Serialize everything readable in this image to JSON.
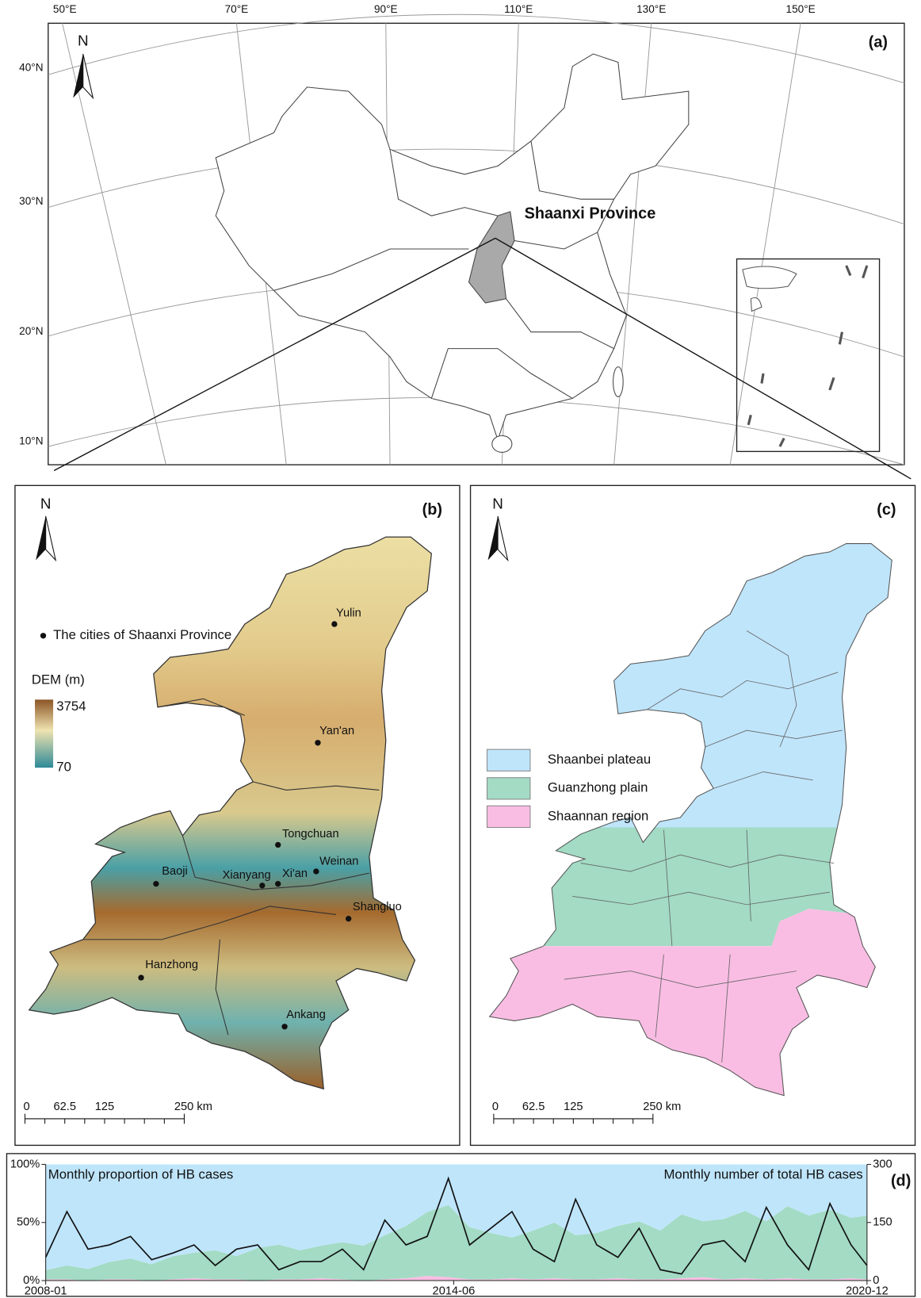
{
  "chart_data": {
    "type": "area",
    "title": "Monthly proportion of HB cases",
    "y2label": "Monthly number of total HB cases",
    "panel_label": "(d)",
    "x": [
      0,
      4,
      8,
      12,
      16,
      20,
      24,
      28,
      32,
      36,
      40,
      44,
      48,
      52,
      56,
      60,
      64,
      68,
      72,
      76,
      80,
      84,
      88,
      92,
      96,
      100,
      104,
      108,
      112,
      116,
      120,
      124,
      128,
      132,
      136,
      140,
      144,
      148,
      152,
      155
    ],
    "xlim": [
      0,
      155
    ],
    "xticks": [
      {
        "value": 0,
        "label": "2008-01"
      },
      {
        "value": 77,
        "label": "2014-06"
      },
      {
        "value": 155,
        "label": "2020-12"
      }
    ],
    "ylim": [
      0,
      100
    ],
    "yticks": [
      {
        "value": 0,
        "label": "0%"
      },
      {
        "value": 50,
        "label": "50%"
      },
      {
        "value": 100,
        "label": "100%"
      }
    ],
    "y2lim": [
      0,
      300
    ],
    "y2ticks": [
      0,
      150,
      300
    ],
    "series": [
      {
        "name": "Shaannan region",
        "color": "#f9bde3",
        "values": [
          1,
          1,
          0,
          1,
          1,
          0,
          1,
          2,
          1,
          1,
          0,
          1,
          1,
          2,
          1,
          0,
          1,
          2,
          4,
          3,
          1,
          1,
          2,
          1,
          2,
          1,
          1,
          2,
          1,
          1,
          2,
          3,
          1,
          2,
          1,
          2,
          1,
          1,
          2,
          1
        ]
      },
      {
        "name": "Guanzhong plain",
        "color": "#a3dbc4",
        "values": [
          8,
          12,
          10,
          15,
          18,
          14,
          20,
          22,
          25,
          20,
          28,
          30,
          25,
          28,
          32,
          30,
          38,
          45,
          55,
          62,
          45,
          40,
          35,
          42,
          48,
          38,
          40,
          45,
          50,
          42,
          55,
          48,
          52,
          58,
          50,
          62,
          55,
          60,
          52,
          55
        ]
      },
      {
        "name": "Shaanbei plateau",
        "color": "#bfe5fb",
        "values": [
          91,
          87,
          90,
          84,
          81,
          86,
          79,
          76,
          74,
          79,
          72,
          69,
          74,
          70,
          67,
          70,
          61,
          53,
          41,
          35,
          54,
          59,
          63,
          57,
          50,
          61,
          59,
          53,
          49,
          57,
          43,
          49,
          47,
          40,
          49,
          36,
          44,
          39,
          46,
          44
        ]
      },
      {
        "color": "#111111",
        "axis": "y2",
        "values": [
          60,
          178,
          81,
          92,
          114,
          54,
          71,
          92,
          39,
          81,
          92,
          28,
          49,
          49,
          81,
          28,
          156,
          92,
          114,
          264,
          92,
          135,
          178,
          81,
          49,
          210,
          92,
          60,
          135,
          28,
          17,
          92,
          103,
          49,
          189,
          92,
          28,
          199,
          92,
          39
        ]
      }
    ]
  },
  "panels": {
    "a": {
      "label": "(a)",
      "north": "N",
      "highlight": "Shaanxi Province",
      "lon_labels": [
        "50°E",
        "70°E",
        "90°E",
        "110°E",
        "130°E",
        "150°E"
      ],
      "lat_labels": [
        "40°N",
        "30°N",
        "20°N",
        "10°N"
      ]
    },
    "b": {
      "label": "(b)",
      "north": "N",
      "city_legend": "The cities of Shaanxi Province",
      "dem_title": "DEM (m)",
      "dem_max": 3754,
      "dem_min": 70,
      "cities": [
        "Yulin",
        "Yan'an",
        "Tongchuan",
        "Weinan",
        "Baoji",
        "Xianyang",
        "Xi'an",
        "Shangluo",
        "Hanzhong",
        "Ankang"
      ],
      "scale_labels": [
        "0",
        "62.5",
        "125",
        "250 km"
      ]
    },
    "c": {
      "label": "(c)",
      "north": "N",
      "scale_labels": [
        "0",
        "62.5",
        "125",
        "250 km"
      ]
    }
  }
}
